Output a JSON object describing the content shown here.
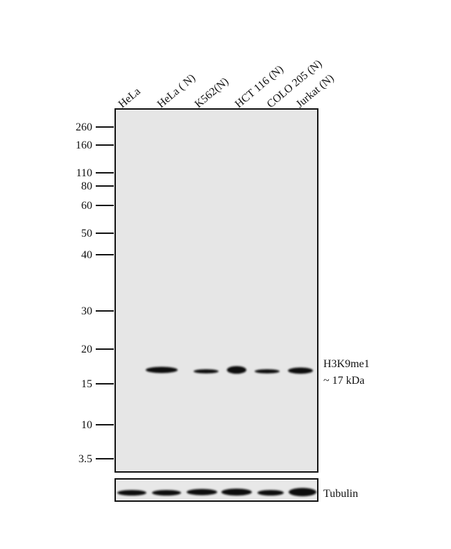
{
  "lanes": [
    "HeLa",
    "HeLa ( N)",
    "K562(N)",
    "HCT 116 (N)",
    "COLO 205 (N)",
    "Jurkat (N)"
  ],
  "markers": [
    "260",
    "160",
    "110",
    "80",
    "60",
    "50",
    "40",
    "30",
    "20",
    "15",
    "10",
    "3.5"
  ],
  "target": {
    "name": "H3K9me1",
    "size": "~ 17 kDa"
  },
  "loading_control": "Tubulin"
}
